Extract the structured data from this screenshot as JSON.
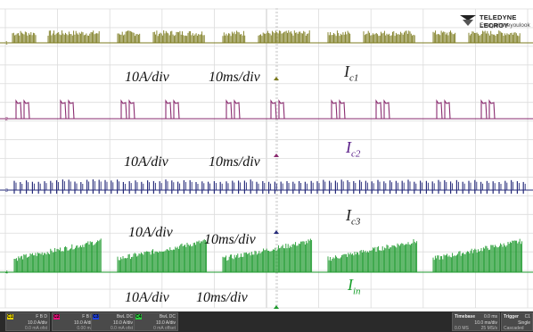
{
  "logo": {
    "brand": "TELEDYNE LECROY",
    "tagline": "Everywhereyoulook",
    "icon": "teledyne-logo-icon"
  },
  "channels": [
    {
      "id": "C1",
      "color": "#7b7a1d",
      "label_main": "I",
      "label_sub": "c1",
      "volts": "10A/div",
      "time": "10ms/div"
    },
    {
      "id": "C2",
      "color": "#8a2b6f",
      "label_main": "I",
      "label_sub": "c2",
      "volts": "10A/div",
      "time": "10ms/div"
    },
    {
      "id": "C3",
      "color": "#262b7a",
      "label_main": "I",
      "label_sub": "c3",
      "volts": "10A/div",
      "time": "10ms/div"
    },
    {
      "id": "C4",
      "color": "#1e9a2e",
      "label_main": "I",
      "label_sub": "in",
      "volts": "10A/div",
      "time": "10ms/div"
    }
  ],
  "statusbar": {
    "channels": [
      {
        "tag": "C1",
        "color": "#e6d200",
        "coupling": "F B D",
        "scale": "10.0 A/div",
        "offset": "0.0 mA ofst"
      },
      {
        "tag": "C2",
        "color": "#e8107a",
        "coupling": "F B D",
        "scale": "10.0 A/div",
        "offset": "0.00 mA"
      },
      {
        "tag": "C3",
        "color": "#1e40e0",
        "coupling": "BwL DC",
        "scale": "10.0 A/div",
        "offset": "0.0 mA ofst"
      },
      {
        "tag": "C4",
        "color": "#2ecc40",
        "coupling": "BwL DC",
        "scale": "10.0 A/div",
        "offset": "0 mA offset"
      }
    ],
    "timebase": {
      "title": "Timebase",
      "value": "0.0 ms",
      "scale": "10.0 ms/div",
      "samples": "0.0 MS",
      "rate": "25 MS/s"
    },
    "trigger": {
      "title": "Trigger",
      "source": "C1",
      "mode": "Single",
      "state": "Cascaded",
      "level": "0"
    }
  }
}
